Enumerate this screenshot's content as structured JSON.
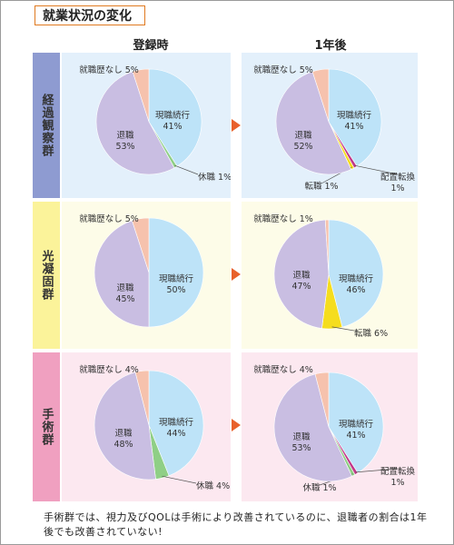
{
  "title": "就業状況の変化",
  "column_headers": [
    "登録時",
    "1年後"
  ],
  "groups": [
    {
      "label": "経過観察群",
      "label_color": "#8e9bd1",
      "panel_color": "#e3f0fb"
    },
    {
      "label": "光凝固群",
      "label_color": "#fbf39a",
      "panel_color": "#fdfce8"
    },
    {
      "label": "手術群",
      "label_color": "#f0a0c0",
      "panel_color": "#fce8f0"
    }
  ],
  "colors": {
    "現職続行": "#bde3f8",
    "退職": "#c9bee2",
    "就職歴なし": "#f6c2ad",
    "休職": "#8fcf86",
    "配置転換": "#c2398a",
    "転職": "#f5dd1e"
  },
  "chart_data": [
    {
      "type": "pie",
      "group": "経過観察群",
      "time": "登録時",
      "slices": [
        {
          "label": "現職続行",
          "value": 41,
          "text": "現職続行\n41%"
        },
        {
          "label": "休職",
          "value": 1,
          "text": "休職 1%"
        },
        {
          "label": "退職",
          "value": 53,
          "text": "退職\n53%"
        },
        {
          "label": "就職歴なし",
          "value": 5,
          "text": "就職歴なし 5%"
        }
      ]
    },
    {
      "type": "pie",
      "group": "経過観察群",
      "time": "1年後",
      "slices": [
        {
          "label": "現職続行",
          "value": 41,
          "text": "現職続行\n41%"
        },
        {
          "label": "配置転換",
          "value": 1,
          "text": "配置転換\n1%"
        },
        {
          "label": "転職",
          "value": 1,
          "text": "転職 1%"
        },
        {
          "label": "退職",
          "value": 52,
          "text": "退職\n52%"
        },
        {
          "label": "就職歴なし",
          "value": 5,
          "text": "就職歴なし 5%"
        }
      ]
    },
    {
      "type": "pie",
      "group": "光凝固群",
      "time": "登録時",
      "slices": [
        {
          "label": "現職続行",
          "value": 50,
          "text": "現職続行\n50%"
        },
        {
          "label": "退職",
          "value": 45,
          "text": "退職\n45%"
        },
        {
          "label": "就職歴なし",
          "value": 5,
          "text": "就職歴なし 5%"
        }
      ]
    },
    {
      "type": "pie",
      "group": "光凝固群",
      "time": "1年後",
      "slices": [
        {
          "label": "現職続行",
          "value": 46,
          "text": "現職続行\n46%"
        },
        {
          "label": "転職",
          "value": 6,
          "text": "転職 6%"
        },
        {
          "label": "退職",
          "value": 47,
          "text": "退職\n47%"
        },
        {
          "label": "就職歴なし",
          "value": 1,
          "text": "就職歴なし 1%"
        }
      ]
    },
    {
      "type": "pie",
      "group": "手術群",
      "time": "登録時",
      "slices": [
        {
          "label": "現職続行",
          "value": 44,
          "text": "現職続行\n44%"
        },
        {
          "label": "休職",
          "value": 4,
          "text": "休職 4%"
        },
        {
          "label": "退職",
          "value": 48,
          "text": "退職\n48%"
        },
        {
          "label": "就職歴なし",
          "value": 4,
          "text": "就職歴なし 4%"
        }
      ]
    },
    {
      "type": "pie",
      "group": "手術群",
      "time": "1年後",
      "slices": [
        {
          "label": "現職続行",
          "value": 41,
          "text": "現職続行\n41%"
        },
        {
          "label": "配置転換",
          "value": 1,
          "text": "配置転換\n1%"
        },
        {
          "label": "休職",
          "value": 1,
          "text": "休職 1%"
        },
        {
          "label": "退職",
          "value": 53,
          "text": "退職\n53%"
        },
        {
          "label": "就職歴なし",
          "value": 4,
          "text": "就職歴なし 4%"
        }
      ]
    }
  ],
  "footer": "手術群では、視力及びQOLは手術により改善されているのに、退職者の割合は1年後でも改善されていない!"
}
